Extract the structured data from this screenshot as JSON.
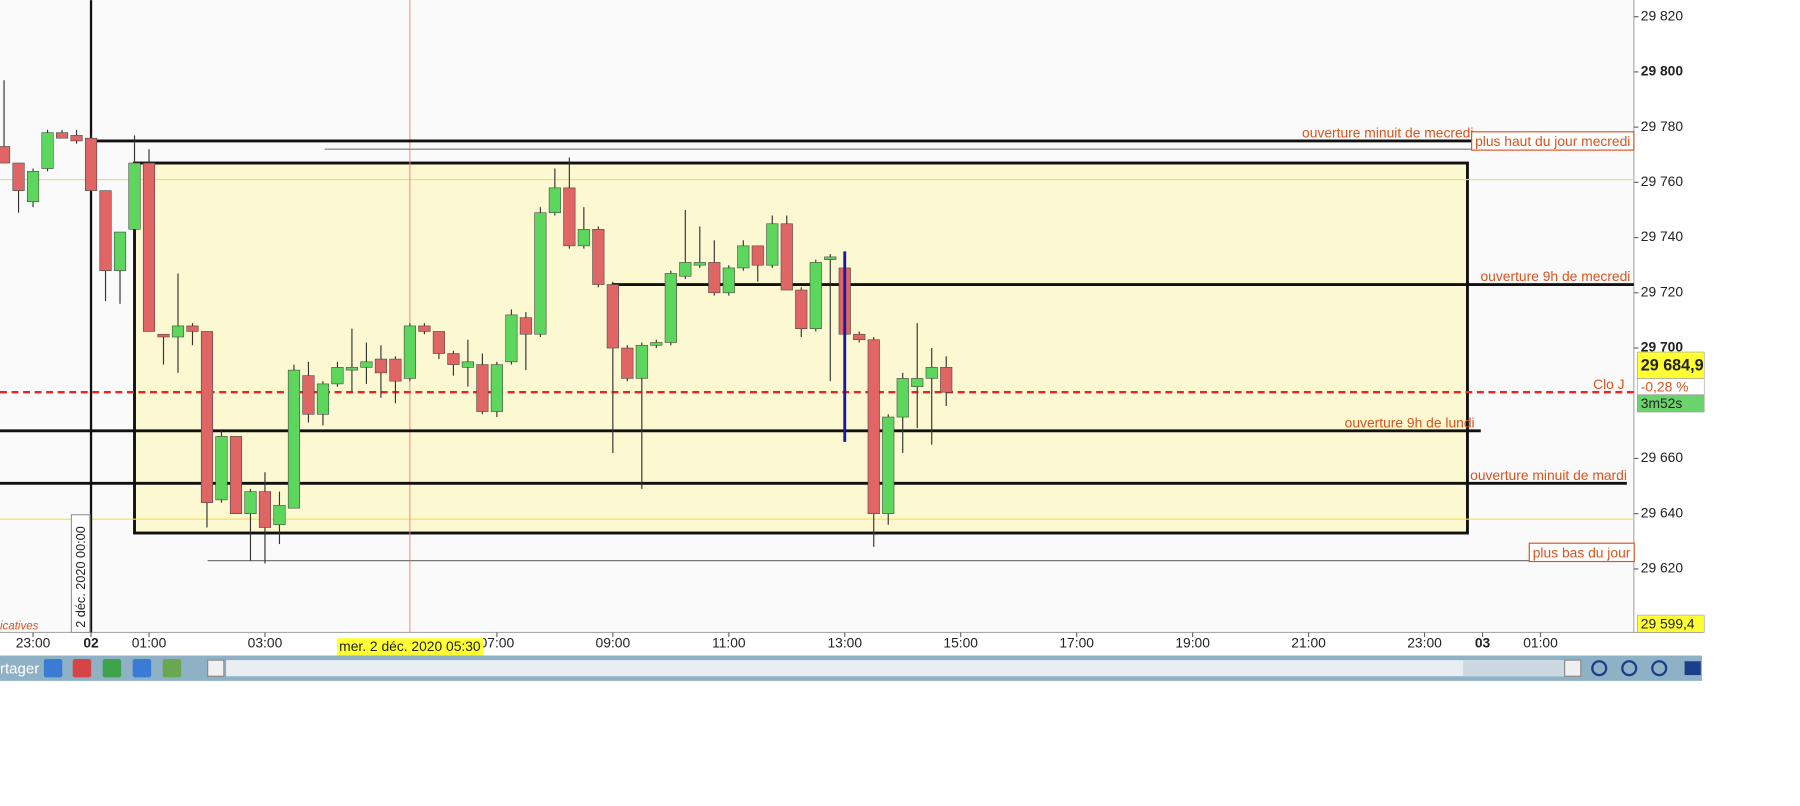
{
  "chart_data": {
    "type": "candlestick",
    "x": [
      -1.5,
      -1.25,
      -1,
      -0.75,
      -0.5,
      -0.25,
      0,
      0.25,
      0.5,
      0.75,
      1,
      1.25,
      1.5,
      1.75,
      2,
      2.25,
      2.5,
      2.75,
      3,
      3.25,
      3.5,
      3.75,
      4,
      4.25,
      4.5,
      4.75,
      5,
      5.25,
      5.5,
      5.75,
      6,
      6.25,
      6.5,
      6.75,
      7,
      7.25,
      7.5,
      7.75,
      8,
      8.25,
      8.5,
      8.75,
      9,
      9.25,
      9.5,
      9.75,
      10,
      10.25,
      10.5,
      10.75,
      11,
      11.25,
      11.5,
      11.75,
      12,
      12.25,
      12.5,
      12.75,
      13,
      13.25,
      13.5,
      13.75,
      14,
      14.25,
      14.5,
      14.75
    ],
    "open": [
      29773,
      29767,
      29753,
      29765,
      29778,
      29777,
      29776,
      29757,
      29728,
      29743,
      29767,
      29705,
      29704,
      29708,
      29706,
      29645,
      29668,
      29640,
      29648,
      29636,
      29642,
      29690,
      29676,
      29687,
      29692,
      29693,
      29696,
      29696,
      29689,
      29708,
      29706,
      29698,
      29693,
      29694,
      29677,
      29695,
      29711,
      29705,
      29749,
      29758,
      29737,
      29743,
      29723,
      29700,
      29689,
      29701,
      29702,
      29726,
      29730,
      29731,
      29720,
      29729,
      29737,
      29730,
      29745,
      29721,
      29707,
      29732,
      29729,
      29705,
      29703,
      29640,
      29675,
      29686,
      29689,
      29693
    ],
    "high": [
      29797,
      29767,
      29765,
      29779,
      29779,
      29779,
      29777,
      29757,
      29742,
      29777,
      29772,
      29705,
      29727,
      29709,
      29706,
      29670,
      29668,
      29649,
      29655,
      29648,
      29694,
      29695,
      29688,
      29695,
      29707,
      29702,
      29701,
      29697,
      29709,
      29709,
      29706,
      29699,
      29703,
      29698,
      29695,
      29714,
      29713,
      29751,
      29765,
      29769,
      29751,
      29744,
      29724,
      29701,
      29702,
      29703,
      29728,
      29750,
      29744,
      29739,
      29730,
      29739,
      29737,
      29748,
      29748,
      29722,
      29732,
      29734,
      29733,
      29706,
      29704,
      29676,
      29691,
      29709,
      29700,
      29697
    ],
    "low": [
      29767,
      29749,
      29751,
      29764,
      29776,
      29774,
      29757,
      29717,
      29716,
      29743,
      29706,
      29694,
      29691,
      29701,
      29635,
      29644,
      29640,
      29623,
      29622,
      29629,
      29642,
      29673,
      29672,
      29686,
      29684,
      29687,
      29682,
      29680,
      29688,
      29705,
      29696,
      29690,
      29686,
      29676,
      29675,
      29694,
      29692,
      29704,
      29748,
      29736,
      29736,
      29722,
      29662,
      29688,
      29649,
      29700,
      29701,
      29725,
      29729,
      29719,
      29719,
      29728,
      29724,
      29729,
      29721,
      29704,
      29706,
      29688,
      29701,
      29702,
      29628,
      29636,
      29662,
      29671,
      29665,
      29679
    ],
    "close": [
      29767,
      29757,
      29764,
      29778,
      29776,
      29775,
      29757,
      29728,
      29742,
      29767,
      29706,
      29704,
      29708,
      29706,
      29644,
      29668,
      29640,
      29648,
      29635,
      29643,
      29692,
      29676,
      29687,
      29693,
      29693,
      29695,
      29691,
      29688,
      29708,
      29706,
      29698,
      29694,
      29695,
      29677,
      29694,
      29712,
      29705,
      29749,
      29758,
      29737,
      29743,
      29723,
      29700,
      29689,
      29701,
      29702,
      29727,
      29731,
      29731,
      29720,
      29729,
      29737,
      29730,
      29745,
      29721,
      29707,
      29731,
      29733,
      29705,
      29703,
      29640,
      29675,
      29689,
      29689,
      29693,
      29684
    ],
    "up_color": "#5cd65c",
    "down_color": "#e06666",
    "xlim": [
      -1.57,
      26.61
    ],
    "ylim": [
      29597,
      29826
    ],
    "xticks": [
      {
        "value": -1,
        "label": "23:00"
      },
      {
        "value": 0,
        "label": "02"
      },
      {
        "value": 1,
        "label": "01:00"
      },
      {
        "value": 3,
        "label": "03:00"
      },
      {
        "value": 7,
        "label": "07:00"
      },
      {
        "value": 9,
        "label": "09:00"
      },
      {
        "value": 11,
        "label": "11:00"
      },
      {
        "value": 13,
        "label": "13:00"
      },
      {
        "value": 15,
        "label": "15:00"
      },
      {
        "value": 17,
        "label": "17:00"
      },
      {
        "value": 19,
        "label": "19:00"
      },
      {
        "value": 21,
        "label": "21:00"
      },
      {
        "value": 23,
        "label": "23:00"
      },
      {
        "value": 24,
        "label": "03"
      },
      {
        "value": 25,
        "label": "01:00"
      }
    ],
    "yticks": [
      {
        "value": 29820,
        "label": "29 820"
      },
      {
        "value": 29800,
        "label": "29 800"
      },
      {
        "value": 29780,
        "label": "29 780"
      },
      {
        "value": 29760,
        "label": "29 760"
      },
      {
        "value": 29740,
        "label": "29 740"
      },
      {
        "value": 29720,
        "label": "29 720"
      },
      {
        "value": 29700,
        "label": "29 700"
      },
      {
        "value": 29660,
        "label": "29 660"
      },
      {
        "value": 29640,
        "label": "29 640"
      },
      {
        "value": 29620,
        "label": "29 620"
      }
    ],
    "box": {
      "x": [
        0.75,
        23.74
      ],
      "y": [
        29633,
        29767
      ],
      "color": "#fcf8d2"
    },
    "lines": [
      {
        "label": "ouverture minuit de mecredi",
        "value": 29775,
        "x": [
          -0.02,
          26.61
        ],
        "color": "#111111"
      },
      {
        "label": "plus haut du jour mecredi",
        "value": 29772,
        "x": [
          4.03,
          26.61
        ],
        "color": "#777777",
        "boxed": true
      },
      {
        "label": "ouverture 9h  de mecredi",
        "value": 29723,
        "x": [
          8.98,
          26.61
        ],
        "color": "#111111"
      },
      {
        "label": "Clo J",
        "value": 29684,
        "x": [
          -1.57,
          26.61
        ],
        "color": "#ee2222",
        "dashed": true
      },
      {
        "label": "ouverture 9h de lundi",
        "value": 29670,
        "x": [
          -1.57,
          23.97
        ],
        "color": "#111111"
      },
      {
        "label": "ouverture minuit de mardi",
        "value": 29651,
        "x": [
          -1.57,
          26.49
        ],
        "color": "#111111"
      },
      {
        "label": "plus bas du jour",
        "value": 29623,
        "x": [
          2.01,
          26.61
        ],
        "color": "#777777",
        "boxed": true
      }
    ],
    "yellow_lines": [
      29761,
      29638
    ],
    "day_line": 0,
    "crosshair": {
      "x": 5.5,
      "label": "mer. 2 déc. 2020 05:30"
    },
    "blue_line": {
      "x": 13,
      "y": [
        29735,
        29666
      ]
    },
    "day_label": "2 déc. 2020 00:00",
    "last_price": "29 684,9",
    "change": "-0,28 %",
    "countdown": "3m52s",
    "low_price": "29 599,4",
    "corner_text": "icatives",
    "toolbar_text": "rtager"
  }
}
